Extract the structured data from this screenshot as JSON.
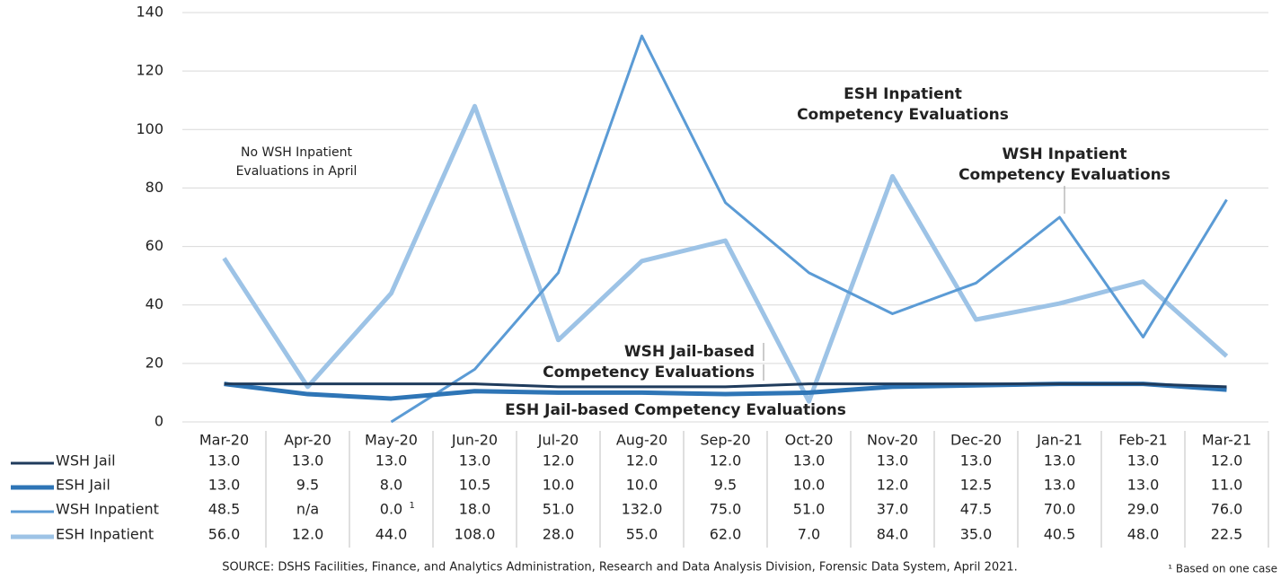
{
  "chart_data": {
    "type": "line",
    "categories": [
      "Mar-20",
      "Apr-20",
      "May-20",
      "Jun-20",
      "Jul-20",
      "Aug-20",
      "Sep-20",
      "Oct-20",
      "Nov-20",
      "Dec-20",
      "Jan-21",
      "Feb-21",
      "Mar-21"
    ],
    "series": [
      {
        "name": "WSH Jail",
        "color": "#1f3b5c",
        "width": 3,
        "values": [
          13,
          13,
          13,
          13,
          12,
          12,
          12,
          13,
          13,
          13,
          13,
          13,
          12
        ],
        "value_labels": [
          "13.0",
          "13.0",
          "13.0",
          "13.0",
          "12.0",
          "12.0",
          "12.0",
          "13.0",
          "13.0",
          "13.0",
          "13.0",
          "13.0",
          "12.0"
        ]
      },
      {
        "name": "ESH Jail",
        "color": "#2e75b6",
        "width": 5,
        "values": [
          13,
          9.5,
          8,
          10.5,
          10,
          10,
          9.5,
          10,
          12,
          12.5,
          13,
          13,
          11
        ],
        "value_labels": [
          "13.0",
          "9.5",
          "8.0",
          "10.5",
          "10.0",
          "10.0",
          "9.5",
          "10.0",
          "12.0",
          "12.5",
          "13.0",
          "13.0",
          "11.0"
        ]
      },
      {
        "name": "WSH Inpatient",
        "color": "#5b9bd5",
        "width": 3,
        "values": [
          48.5,
          null,
          0,
          18,
          51,
          132,
          75,
          51,
          37,
          47.5,
          70,
          29,
          76
        ],
        "value_labels": [
          "48.5",
          "n/a",
          "0.0",
          "18.0",
          "51.0",
          "132.0",
          "75.0",
          "51.0",
          "37.0",
          "47.5",
          "70.0",
          "29.0",
          "76.0"
        ]
      },
      {
        "name": "ESH Inpatient",
        "color": "#9dc3e6",
        "width": 5,
        "values": [
          56,
          12,
          44,
          108,
          28,
          55,
          62,
          7,
          84,
          35,
          40.5,
          48,
          22.5
        ],
        "value_labels": [
          "56.0",
          "12.0",
          "44.0",
          "108.0",
          "28.0",
          "55.0",
          "62.0",
          "7.0",
          "84.0",
          "35.0",
          "40.5",
          "48.0",
          "22.5"
        ]
      }
    ],
    "footnote_refs": [
      {
        "series": 2,
        "category": 2,
        "mark": "1"
      }
    ],
    "ylim": [
      0,
      140
    ],
    "yticks": [
      0,
      20,
      40,
      60,
      80,
      100,
      120,
      140
    ],
    "grid": true,
    "annotations": [
      {
        "lines": [
          "No WSH Inpatient",
          "Evaluations in April"
        ],
        "color": "#222222"
      },
      {
        "lines": [
          "ESH Inpatient",
          "Competency Evaluations"
        ],
        "color": "#7fb0dc"
      },
      {
        "lines": [
          "WSH Inpatient",
          "Competency Evaluations"
        ],
        "color": "#4a8cc8"
      },
      {
        "lines": [
          "WSH Jail-based",
          "Competency Evaluations"
        ],
        "color": "#1f3b5c"
      },
      {
        "lines": [
          "ESH Jail-based Competency Evaluations"
        ],
        "color": "#2e75b6"
      }
    ],
    "source": "SOURCE: DSHS Facilities, Finance, and Analytics Administration, Research and Data Analysis Division, Forensic Data System, April 2021.",
    "footnote": "¹ Based on one case"
  }
}
